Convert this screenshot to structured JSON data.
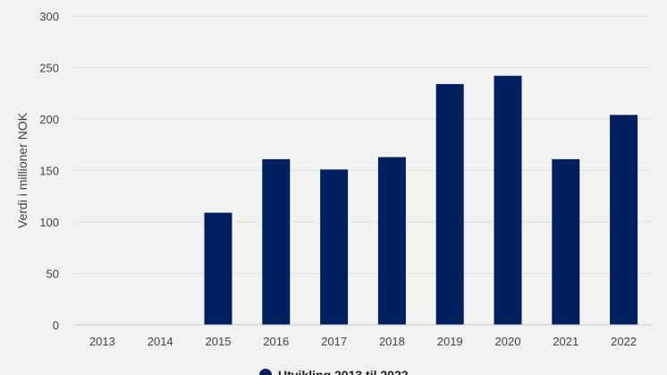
{
  "chart_data": {
    "type": "bar",
    "categories": [
      "2013",
      "2014",
      "2015",
      "2016",
      "2017",
      "2018",
      "2019",
      "2020",
      "2021",
      "2022"
    ],
    "series": [
      {
        "name": "Utvikling 2013 til 2022",
        "values": [
          0,
          0,
          109,
          161,
          151,
          163,
          234,
          242,
          161,
          204
        ],
        "color": "#001f5f"
      }
    ],
    "xlabel": "",
    "ylabel": "Verdi i millioner NOK",
    "ylim": [
      0,
      300
    ],
    "yticks": [
      0,
      50,
      100,
      150,
      200,
      250,
      300
    ],
    "grid": true,
    "legend": "bottom-center"
  }
}
